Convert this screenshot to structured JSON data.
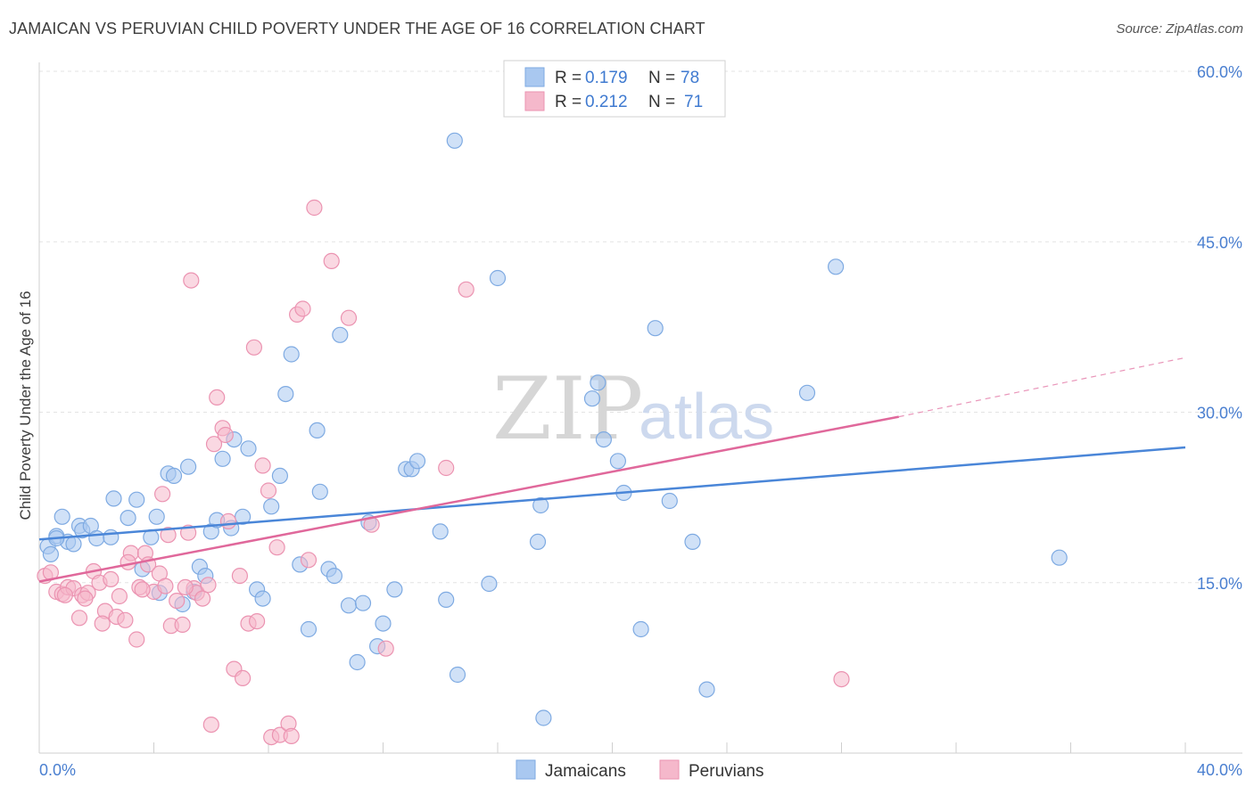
{
  "header": {
    "title": "JAMAICAN VS PERUVIAN CHILD POVERTY UNDER THE AGE OF 16 CORRELATION CHART",
    "source": "Source: ZipAtlas.com"
  },
  "watermark": {
    "zip": "ZIP",
    "atlas": "atlas"
  },
  "legend": {
    "rows": [
      {
        "r_label": "R =",
        "r_value": "0.179",
        "n_label": "N =",
        "n_value": "78",
        "color": "#a9c8f0"
      },
      {
        "r_label": "R =",
        "r_value": "0.212",
        "n_label": "N =",
        "n_value": "71",
        "color": "#f5b8cb"
      }
    ]
  },
  "bottom_legend": [
    {
      "label": "Jamaicans",
      "color": "#a9c8f0"
    },
    {
      "label": "Peruvians",
      "color": "#f5b8cb"
    }
  ],
  "chart_data": {
    "type": "scatter",
    "title": "JAMAICAN VS PERUVIAN CHILD POVERTY UNDER THE AGE OF 16 CORRELATION CHART",
    "xlabel": "",
    "ylabel": "Child Poverty Under the Age of 16",
    "xlim": [
      0,
      40
    ],
    "ylim": [
      0,
      60
    ],
    "x_tick_labels": [
      "0.0%",
      "40.0%"
    ],
    "y_ticks": [
      15,
      30,
      45,
      60
    ],
    "y_tick_labels": [
      "15.0%",
      "30.0%",
      "45.0%",
      "60.0%"
    ],
    "grid": true,
    "legend_position": "top-center",
    "series": [
      {
        "name": "Jamaicans",
        "color": "#4a86d8",
        "fill": "#a9c8f0",
        "trend": {
          "x": [
            0,
            40
          ],
          "y": [
            18.8,
            26.9
          ]
        },
        "points": [
          [
            0.3,
            18.2
          ],
          [
            0.4,
            17.5
          ],
          [
            0.6,
            19.1
          ],
          [
            0.8,
            20.8
          ],
          [
            1.0,
            18.6
          ],
          [
            1.2,
            18.4
          ],
          [
            1.4,
            20.0
          ],
          [
            1.5,
            19.6
          ],
          [
            1.8,
            20.0
          ],
          [
            2.0,
            18.9
          ],
          [
            2.5,
            19.0
          ],
          [
            2.6,
            22.4
          ],
          [
            3.1,
            20.7
          ],
          [
            3.4,
            22.3
          ],
          [
            3.6,
            16.2
          ],
          [
            3.9,
            19.0
          ],
          [
            4.1,
            20.8
          ],
          [
            4.2,
            14.1
          ],
          [
            4.5,
            24.6
          ],
          [
            4.7,
            24.4
          ],
          [
            5.0,
            13.1
          ],
          [
            5.2,
            25.2
          ],
          [
            5.4,
            14.2
          ],
          [
            5.6,
            16.4
          ],
          [
            5.8,
            15.6
          ],
          [
            6.0,
            19.5
          ],
          [
            6.2,
            20.5
          ],
          [
            6.4,
            25.9
          ],
          [
            6.7,
            19.8
          ],
          [
            6.8,
            27.6
          ],
          [
            7.1,
            20.8
          ],
          [
            7.3,
            26.8
          ],
          [
            7.6,
            14.4
          ],
          [
            7.8,
            13.6
          ],
          [
            8.1,
            21.7
          ],
          [
            8.4,
            24.4
          ],
          [
            8.6,
            31.6
          ],
          [
            8.8,
            35.1
          ],
          [
            9.1,
            16.6
          ],
          [
            9.4,
            10.9
          ],
          [
            9.7,
            28.4
          ],
          [
            9.8,
            23.0
          ],
          [
            10.1,
            16.2
          ],
          [
            10.3,
            15.6
          ],
          [
            10.5,
            36.8
          ],
          [
            10.8,
            13.0
          ],
          [
            11.1,
            8.0
          ],
          [
            11.3,
            13.2
          ],
          [
            11.5,
            20.3
          ],
          [
            11.8,
            9.4
          ],
          [
            12.0,
            11.4
          ],
          [
            12.4,
            14.4
          ],
          [
            12.8,
            25.0
          ],
          [
            13.0,
            25.0
          ],
          [
            13.2,
            25.7
          ],
          [
            14.0,
            19.5
          ],
          [
            14.2,
            13.5
          ],
          [
            14.5,
            53.9
          ],
          [
            14.6,
            6.9
          ],
          [
            15.7,
            14.9
          ],
          [
            16.0,
            41.8
          ],
          [
            17.4,
            18.6
          ],
          [
            17.5,
            21.8
          ],
          [
            19.3,
            31.2
          ],
          [
            19.5,
            32.6
          ],
          [
            19.7,
            27.6
          ],
          [
            20.2,
            25.7
          ],
          [
            20.4,
            22.9
          ],
          [
            21.0,
            10.9
          ],
          [
            21.5,
            37.4
          ],
          [
            22.0,
            22.2
          ],
          [
            22.8,
            18.6
          ],
          [
            23.3,
            5.6
          ],
          [
            26.8,
            31.7
          ],
          [
            27.8,
            42.8
          ],
          [
            35.6,
            17.2
          ],
          [
            17.6,
            3.1
          ],
          [
            0.6,
            18.9
          ]
        ]
      },
      {
        "name": "Peruvians",
        "color": "#e0689b",
        "fill": "#f5b8cb",
        "trend": {
          "x": [
            0,
            30
          ],
          "y": [
            15.1,
            29.6
          ]
        },
        "trend_dashed": {
          "x": [
            30,
            40
          ],
          "y": [
            29.6,
            34.8
          ]
        },
        "points": [
          [
            0.2,
            15.6
          ],
          [
            0.4,
            15.9
          ],
          [
            0.6,
            14.2
          ],
          [
            0.8,
            14.0
          ],
          [
            1.0,
            14.6
          ],
          [
            1.2,
            14.5
          ],
          [
            1.4,
            11.9
          ],
          [
            1.5,
            13.9
          ],
          [
            1.7,
            14.1
          ],
          [
            1.9,
            16.0
          ],
          [
            2.1,
            15.0
          ],
          [
            2.3,
            12.5
          ],
          [
            2.5,
            15.3
          ],
          [
            2.7,
            12.0
          ],
          [
            2.8,
            13.8
          ],
          [
            3.0,
            11.7
          ],
          [
            3.2,
            17.6
          ],
          [
            3.4,
            10.0
          ],
          [
            3.5,
            14.6
          ],
          [
            3.7,
            17.6
          ],
          [
            3.8,
            16.6
          ],
          [
            4.0,
            14.2
          ],
          [
            4.2,
            15.8
          ],
          [
            4.4,
            14.7
          ],
          [
            4.5,
            19.2
          ],
          [
            4.6,
            11.2
          ],
          [
            4.8,
            13.4
          ],
          [
            5.0,
            11.3
          ],
          [
            5.2,
            19.4
          ],
          [
            5.3,
            41.6
          ],
          [
            5.4,
            14.5
          ],
          [
            5.5,
            14.1
          ],
          [
            5.7,
            13.6
          ],
          [
            5.9,
            14.8
          ],
          [
            6.1,
            27.2
          ],
          [
            6.2,
            31.3
          ],
          [
            6.4,
            28.6
          ],
          [
            6.5,
            28.0
          ],
          [
            6.6,
            20.4
          ],
          [
            6.8,
            7.4
          ],
          [
            7.0,
            15.6
          ],
          [
            7.1,
            6.6
          ],
          [
            7.3,
            11.4
          ],
          [
            7.5,
            35.7
          ],
          [
            7.6,
            11.6
          ],
          [
            7.8,
            25.3
          ],
          [
            8.0,
            23.1
          ],
          [
            8.1,
            1.4
          ],
          [
            8.3,
            18.1
          ],
          [
            8.4,
            1.6
          ],
          [
            8.7,
            2.6
          ],
          [
            9.0,
            38.6
          ],
          [
            9.2,
            39.1
          ],
          [
            9.4,
            17.0
          ],
          [
            9.6,
            48.0
          ],
          [
            10.2,
            43.3
          ],
          [
            10.8,
            38.3
          ],
          [
            11.6,
            20.1
          ],
          [
            12.1,
            9.2
          ],
          [
            14.2,
            25.1
          ],
          [
            14.9,
            40.8
          ],
          [
            28.0,
            6.5
          ],
          [
            3.1,
            16.8
          ],
          [
            2.2,
            11.4
          ],
          [
            1.6,
            13.6
          ],
          [
            0.9,
            13.9
          ],
          [
            6.0,
            2.5
          ],
          [
            5.1,
            14.6
          ],
          [
            4.3,
            22.8
          ],
          [
            3.6,
            14.4
          ],
          [
            8.8,
            1.5
          ]
        ]
      }
    ]
  }
}
